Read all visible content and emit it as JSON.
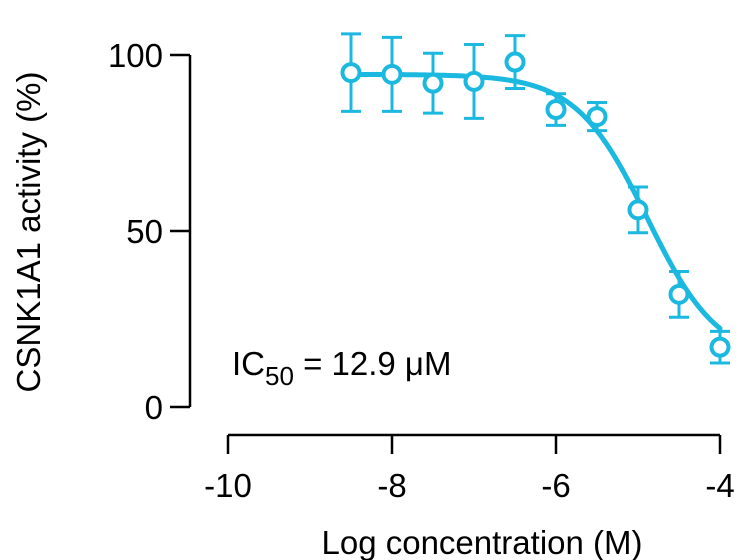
{
  "chart_data": {
    "type": "scatter",
    "title": "",
    "xlabel": "Log concentration (M)",
    "ylabel": "CSNK1A1 activity (%)",
    "xlim": [
      -10,
      -4
    ],
    "ylim": [
      0,
      100
    ],
    "xticks": [
      -10,
      -8,
      -6,
      -4
    ],
    "xtick_labels": [
      "-10",
      "-8",
      "-6",
      "-4"
    ],
    "yticks": [
      0,
      50,
      100
    ],
    "ytick_labels": [
      "0",
      "50",
      "100"
    ],
    "grid": false,
    "series": [
      {
        "name": "CSNK1A1",
        "color": "#1bb8e0",
        "marker": "open-circle",
        "x": [
          -8.5,
          -8.0,
          -7.5,
          -7.0,
          -6.5,
          -6.0,
          -5.5,
          -5.0,
          -4.5,
          -4.0
        ],
        "y": [
          95,
          94.5,
          92,
          92.5,
          98,
          84.5,
          82.5,
          56,
          32,
          17
        ],
        "yerr": [
          11,
          10.5,
          8.5,
          10.5,
          7.5,
          4.5,
          4,
          6.5,
          6.5,
          4.5
        ]
      }
    ],
    "fit": {
      "type": "four-parameter logistic",
      "top": 94.5,
      "bottom": 13,
      "log_ic50": -4.889,
      "hill_slope": -1.0,
      "x_range": [
        -8.5,
        -4.0
      ]
    },
    "annotation": {
      "prefix": "IC",
      "subscript": "50",
      "suffix": " = 12.9 μM"
    }
  }
}
